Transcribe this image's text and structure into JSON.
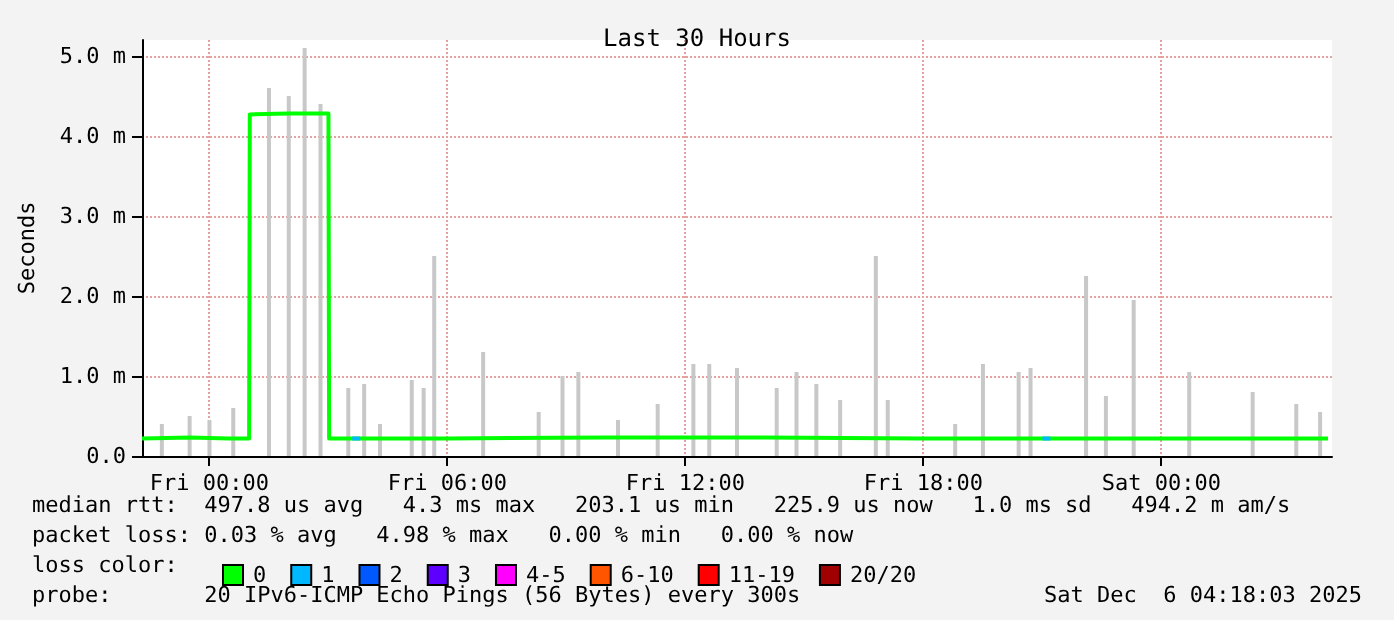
{
  "chart_data": {
    "type": "line",
    "title": "Last 30 Hours",
    "ylabel": "Seconds",
    "xlim": [
      "2025-12-04T22:18",
      "2025-12-06T04:18"
    ],
    "ylim": [
      0,
      5.2
    ],
    "xticks": [
      {
        "value": "2025-12-05T00:00",
        "label": "Fri 00:00"
      },
      {
        "value": "2025-12-05T06:00",
        "label": "Fri 06:00"
      },
      {
        "value": "2025-12-05T12:00",
        "label": "Fri 12:00"
      },
      {
        "value": "2025-12-05T18:00",
        "label": "Fri 18:00"
      },
      {
        "value": "2025-12-06T00:00",
        "label": "Sat 00:00"
      }
    ],
    "yticks": [
      {
        "value": 0,
        "label": "0.0"
      },
      {
        "value": 1,
        "label": "1.0 m"
      },
      {
        "value": 2,
        "label": "2.0 m"
      },
      {
        "value": 3,
        "label": "3.0 m"
      },
      {
        "value": 4,
        "label": "4.0 m"
      },
      {
        "value": 5,
        "label": "5.0 m"
      }
    ],
    "grid": true,
    "legend": "bottom left",
    "legend_title": "loss color:",
    "series": [
      {
        "type": "bar",
        "color": "#c8c8c8",
        "x": [
          "2025-12-04T22:48",
          "2025-12-04T23:30",
          "2025-12-05T00:00",
          "2025-12-05T00:36",
          "2025-12-05T01:30",
          "2025-12-05T02:00",
          "2025-12-05T02:24",
          "2025-12-05T02:48",
          "2025-12-05T03:30",
          "2025-12-05T03:54",
          "2025-12-05T04:18",
          "2025-12-05T05:06",
          "2025-12-05T05:24",
          "2025-12-05T05:40",
          "2025-12-05T06:54",
          "2025-12-05T08:18",
          "2025-12-05T08:54",
          "2025-12-05T09:18",
          "2025-12-05T10:18",
          "2025-12-05T11:18",
          "2025-12-05T12:12",
          "2025-12-05T12:36",
          "2025-12-05T13:18",
          "2025-12-05T14:18",
          "2025-12-05T14:48",
          "2025-12-05T15:18",
          "2025-12-05T15:54",
          "2025-12-05T16:48",
          "2025-12-05T17:06",
          "2025-12-05T18:48",
          "2025-12-05T19:30",
          "2025-12-05T20:24",
          "2025-12-05T20:42",
          "2025-12-05T22:06",
          "2025-12-05T22:36",
          "2025-12-05T23:18",
          "2025-12-06T00:42",
          "2025-12-06T02:18",
          "2025-12-06T03:24",
          "2025-12-06T04:00"
        ],
        "values": [
          0.4,
          0.5,
          0.45,
          0.6,
          4.6,
          4.5,
          5.1,
          4.4,
          0.85,
          0.9,
          0.4,
          0.95,
          0.85,
          2.5,
          1.3,
          0.55,
          1.0,
          1.05,
          0.45,
          0.65,
          1.15,
          1.15,
          1.1,
          0.85,
          1.05,
          0.9,
          0.7,
          2.5,
          0.7,
          0.4,
          1.15,
          1.05,
          1.1,
          2.25,
          0.75,
          1.95,
          1.05,
          0.8,
          0.65,
          0.55
        ]
      },
      {
        "name": "0",
        "color": "#00ff00",
        "x": [
          "2025-12-04T22:18",
          "2025-12-04T23:30",
          "2025-12-05T00:30",
          "2025-12-05T01:00",
          "2025-12-05T01:01",
          "2025-12-05T02:00",
          "2025-12-05T03:00",
          "2025-12-05T03:01",
          "2025-12-05T06:00",
          "2025-12-05T10:00",
          "2025-12-05T14:00",
          "2025-12-05T18:00",
          "2025-12-05T22:00",
          "2025-12-06T02:00",
          "2025-12-06T04:12"
        ],
        "values": [
          0.22,
          0.23,
          0.22,
          0.22,
          4.27,
          4.28,
          4.28,
          0.22,
          0.22,
          0.23,
          0.23,
          0.22,
          0.22,
          0.22,
          0.22
        ]
      },
      {
        "name": "1",
        "color": "#00b8ff",
        "x": [
          "2025-12-05T03:36",
          "2025-12-05T03:48",
          "2025-12-05T12:00",
          "2025-12-05T21:00",
          "2025-12-05T21:12"
        ],
        "values": [
          0.22,
          0.22,
          null,
          0.22,
          0.22
        ]
      },
      {
        "name": "2",
        "color": "#0059ff"
      },
      {
        "name": "3",
        "color": "#5e00ff"
      },
      {
        "name": "4-5",
        "color": "#ff00ff"
      },
      {
        "name": "6-10",
        "color": "#ff5500"
      },
      {
        "name": "11-19",
        "color": "#ff0000"
      },
      {
        "name": "20/20",
        "color": "#a10000"
      }
    ],
    "annotations": [
      "median rtt:  497.8 us avg   4.3 ms max   203.1 us min   225.9 us now   1.0 ms sd   494.2 m am/s",
      "packet loss: 0.03 % avg   4.98 % max   0.00 % min   0.00 % now",
      "probe:       20 IPv6-ICMP Echo Pings (56 Bytes) every 300s",
      "Sat Dec  6 04:18:03 2025"
    ]
  }
}
